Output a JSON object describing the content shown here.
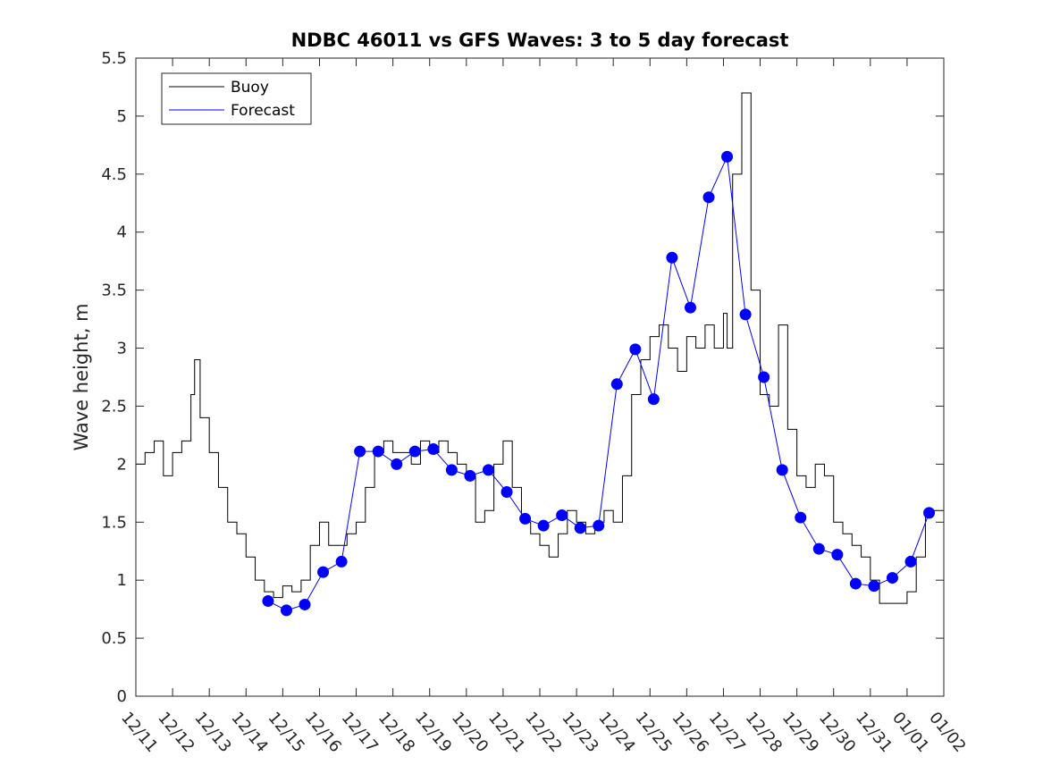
{
  "chart_data": {
    "type": "line",
    "title": "NDBC 46011 vs GFS Waves: 3 to 5 day forecast",
    "xlabel": "",
    "ylabel": "Wave height, m",
    "xlim": [
      0,
      22
    ],
    "ylim": [
      0,
      5.5
    ],
    "yticks": [
      0,
      0.5,
      1,
      1.5,
      2,
      2.5,
      3,
      3.5,
      4,
      4.5,
      5,
      5.5
    ],
    "ytick_labels": [
      "0",
      "0.5",
      "1",
      "1.5",
      "2",
      "2.5",
      "3",
      "3.5",
      "4",
      "4.5",
      "5",
      "5.5"
    ],
    "xticks": [
      0,
      1,
      2,
      3,
      4,
      5,
      6,
      7,
      8,
      9,
      10,
      11,
      12,
      13,
      14,
      15,
      16,
      17,
      18,
      19,
      20,
      21,
      22
    ],
    "xtick_labels": [
      "12/11",
      "12/12",
      "12/13",
      "12/14",
      "12/15",
      "12/16",
      "12/17",
      "12/18",
      "12/19",
      "12/20",
      "12/21",
      "12/22",
      "12/23",
      "12/24",
      "12/25",
      "12/26",
      "12/27",
      "12/28",
      "12/29",
      "12/30",
      "12/31",
      "01/01",
      "01/02"
    ],
    "legend": {
      "position": "top-left",
      "entries": [
        "Buoy",
        "Forecast"
      ]
    },
    "colors": {
      "buoy": "#000000",
      "forecast": "#0000ff",
      "markers": "#0000ff",
      "axes": "#262626"
    },
    "series": [
      {
        "name": "Buoy",
        "x": [
          0,
          0.25,
          0.5,
          0.75,
          1.0,
          1.25,
          1.5,
          1.6,
          1.75,
          2.0,
          2.25,
          2.5,
          2.75,
          3.0,
          3.25,
          3.5,
          3.75,
          4.0,
          4.25,
          4.5,
          4.75,
          5.0,
          5.25,
          5.5,
          5.75,
          6.0,
          6.25,
          6.5,
          6.75,
          7.0,
          7.25,
          7.5,
          7.75,
          8.0,
          8.25,
          8.5,
          8.75,
          9.0,
          9.25,
          9.5,
          9.75,
          10.0,
          10.25,
          10.5,
          10.75,
          11.0,
          11.25,
          11.5,
          11.75,
          12.0,
          12.25,
          12.5,
          12.75,
          13.0,
          13.25,
          13.5,
          13.75,
          14.0,
          14.25,
          14.5,
          14.75,
          15.0,
          15.25,
          15.5,
          15.75,
          16.0,
          16.1,
          16.25,
          16.5,
          16.75,
          17.0,
          17.25,
          17.5,
          17.75,
          18.0,
          18.25,
          18.5,
          18.75,
          19.0,
          19.25,
          19.5,
          19.75,
          20.0,
          20.25,
          20.5,
          20.75,
          21.0,
          21.25,
          21.5,
          21.75,
          22.0
        ],
        "y": [
          2.0,
          2.1,
          2.2,
          1.9,
          2.1,
          2.2,
          2.6,
          2.9,
          2.4,
          2.1,
          1.8,
          1.5,
          1.4,
          1.2,
          1.0,
          0.9,
          0.85,
          0.95,
          0.9,
          1.0,
          1.3,
          1.5,
          1.3,
          1.3,
          1.4,
          1.5,
          1.8,
          2.1,
          2.2,
          2.1,
          2.1,
          2.0,
          2.2,
          2.1,
          2.2,
          2.1,
          2.0,
          1.9,
          1.5,
          1.6,
          2.0,
          2.2,
          1.8,
          1.5,
          1.4,
          1.3,
          1.2,
          1.4,
          1.6,
          1.5,
          1.4,
          1.5,
          1.6,
          1.5,
          1.9,
          2.6,
          2.9,
          3.1,
          3.2,
          3.0,
          2.8,
          3.1,
          3.0,
          3.2,
          3.0,
          3.3,
          3.0,
          4.5,
          5.2,
          3.5,
          2.6,
          2.5,
          3.2,
          2.3,
          1.9,
          1.8,
          2.0,
          1.9,
          1.5,
          1.4,
          1.3,
          1.2,
          1.0,
          0.8,
          0.8,
          0.8,
          0.9,
          1.2,
          1.6,
          1.6,
          1.5
        ]
      },
      {
        "name": "Forecast",
        "x": [
          3.6,
          4.1,
          4.6,
          5.1,
          5.6,
          6.1,
          6.6,
          7.1,
          7.6,
          8.1,
          8.6,
          9.1,
          9.6,
          10.1,
          10.6,
          11.1,
          11.6,
          12.1,
          12.6,
          13.1,
          13.6,
          14.1,
          14.6,
          15.1,
          15.6,
          16.1,
          16.6,
          17.1,
          17.6,
          18.1,
          18.6,
          19.1,
          19.6,
          20.1,
          20.6,
          21.1,
          21.6
        ],
        "y": [
          0.82,
          0.74,
          0.79,
          1.07,
          1.16,
          2.11,
          2.11,
          2.0,
          2.11,
          2.13,
          1.95,
          1.9,
          1.95,
          1.76,
          1.53,
          1.47,
          1.56,
          1.45,
          1.47,
          2.69,
          2.99,
          2.56,
          3.78,
          3.35,
          4.3,
          4.65,
          3.29,
          2.75,
          1.95,
          1.54,
          1.27,
          1.22,
          0.97,
          0.95,
          1.02,
          1.16,
          1.58
        ]
      }
    ]
  }
}
